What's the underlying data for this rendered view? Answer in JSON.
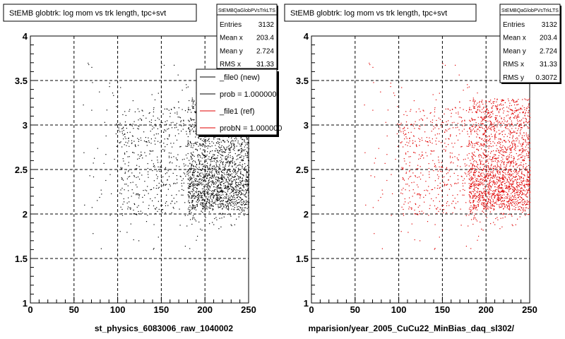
{
  "footer_text": "",
  "chart_data": [
    {
      "type": "scatter",
      "title": "StEMB globtrk: log mom vs trk length, tpc+svt",
      "xlabel": "st_physics_6083006_raw_1040002",
      "ylabel": "",
      "xlim": [
        0,
        250
      ],
      "ylim": [
        1,
        4
      ],
      "xticks": [
        "0",
        "50",
        "100",
        "150",
        "200",
        "250"
      ],
      "yticks": [
        "1",
        "1.5",
        "2",
        "2.5",
        "3",
        "3.5",
        "4"
      ],
      "grid": true,
      "point_color": "#000000",
      "stats": {
        "title": "StEMBQaGlobPVsTrkLTS",
        "rows": [
          {
            "label": "Entries",
            "value": "3132"
          },
          {
            "label": "Mean x",
            "value": "203.4"
          },
          {
            "label": "Mean y",
            "value": "2.724"
          },
          {
            "label": "RMS x",
            "value": "31.33"
          }
        ]
      },
      "legend": {
        "placement": "top-right",
        "entries": [
          {
            "label": "_file0 (new)",
            "color": "#000000"
          },
          {
            "label": "prob = 1.000000",
            "color": "#000000"
          },
          {
            "label": "_file1 (ref)",
            "color": "#e00000"
          },
          {
            "label": "probN = 1.000000",
            "color": "#e00000"
          }
        ]
      },
      "series": [
        {
          "name": "_file0 (new)",
          "entries": 3132,
          "mean_x": 203.4,
          "mean_y": 2.724,
          "rms_x": 31.33,
          "rms_y": 0.3072
        }
      ]
    },
    {
      "type": "scatter",
      "title": "StEMB globtrk: log mom vs trk length, tpc+svt",
      "xlabel": "mparision/year_2005_CuCu22_MinBias_daq_sl302/",
      "ylabel": "",
      "xlim": [
        0,
        250
      ],
      "ylim": [
        1,
        4
      ],
      "xticks": [
        "0",
        "50",
        "100",
        "150",
        "200",
        "250"
      ],
      "yticks": [
        "1",
        "1.5",
        "2",
        "2.5",
        "3",
        "3.5",
        "4"
      ],
      "grid": true,
      "point_color": "#e00000",
      "stats": {
        "title": "StEMBQaGlobPVsTrkLTS",
        "rows": [
          {
            "label": "Entries",
            "value": "3132"
          },
          {
            "label": "Mean x",
            "value": "203.4"
          },
          {
            "label": "Mean y",
            "value": "2.724"
          },
          {
            "label": "RMS x",
            "value": "31.33"
          },
          {
            "label": "RMS y",
            "value": "0.3072"
          }
        ]
      },
      "series": [
        {
          "name": "_file1 (ref)",
          "entries": 3132,
          "mean_x": 203.4,
          "mean_y": 2.724,
          "rms_x": 31.33,
          "rms_y": 0.3072
        }
      ]
    }
  ]
}
